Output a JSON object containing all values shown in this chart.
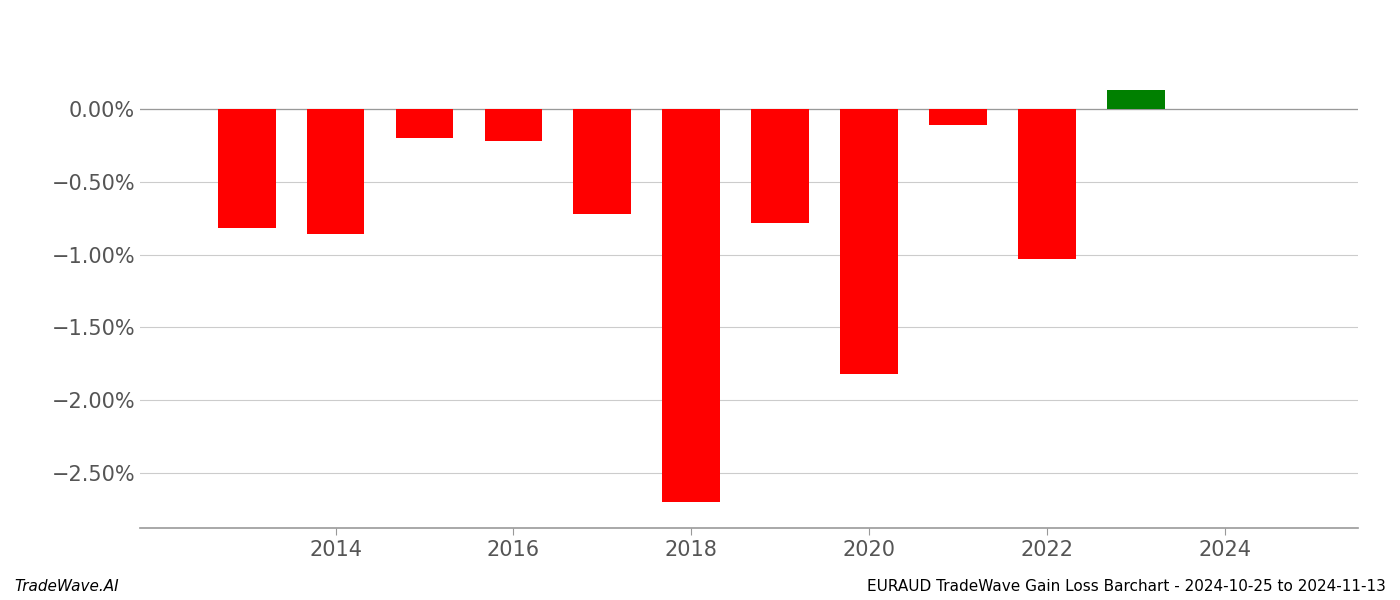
{
  "years": [
    2013,
    2014,
    2015,
    2016,
    2017,
    2018,
    2019,
    2020,
    2021,
    2022,
    2023
  ],
  "values": [
    -0.82,
    -0.86,
    -0.2,
    -0.22,
    -0.72,
    -2.7,
    -0.78,
    -1.82,
    -0.11,
    -1.03,
    0.13
  ],
  "bar_colors": [
    "#ff0000",
    "#ff0000",
    "#ff0000",
    "#ff0000",
    "#ff0000",
    "#ff0000",
    "#ff0000",
    "#ff0000",
    "#ff0000",
    "#ff0000",
    "#008000"
  ],
  "bar_width": 0.65,
  "xlim": [
    2011.8,
    2025.5
  ],
  "ylim": [
    -2.88,
    0.42
  ],
  "yticks": [
    0.0,
    -0.5,
    -1.0,
    -1.5,
    -2.0,
    -2.5
  ],
  "ytick_labels": [
    "0.00%",
    "−0.50%",
    "−1.00%",
    "−1.50%",
    "−2.00%",
    "−2.50%"
  ],
  "xticks": [
    2014,
    2016,
    2018,
    2020,
    2022,
    2024
  ],
  "grid_color": "#cccccc",
  "spine_color": "#999999",
  "footer_left": "TradeWave.AI",
  "footer_right": "EURAUD TradeWave Gain Loss Barchart - 2024-10-25 to 2024-11-13",
  "footer_fontsize": 11,
  "tick_fontsize": 15,
  "background_color": "white"
}
